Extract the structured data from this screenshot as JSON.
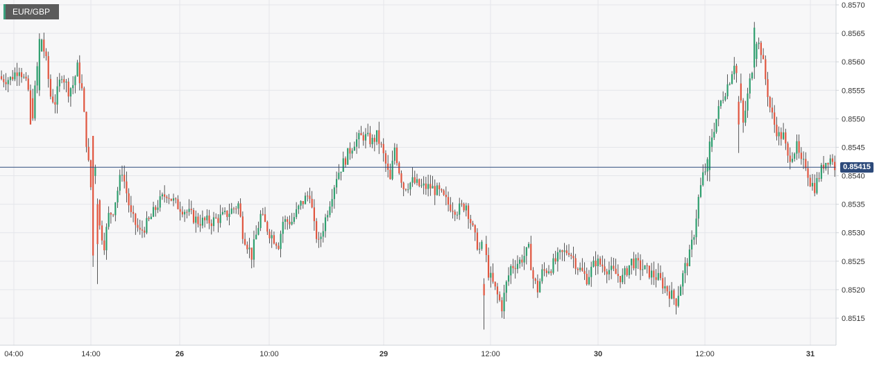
{
  "chart_data": {
    "type": "candlestick",
    "title": "EUR/GBP",
    "y_ticks": [
      "0.8570",
      "0.8565",
      "0.8560",
      "0.8555",
      "0.8550",
      "0.8545",
      "0.8540",
      "0.8535",
      "0.8530",
      "0.8525",
      "0.8520",
      "0.8515"
    ],
    "x_ticks": [
      {
        "label": "04:00",
        "bold": false
      },
      {
        "label": "14:00",
        "bold": false
      },
      {
        "label": "26",
        "bold": true
      },
      {
        "label": "10:00",
        "bold": false
      },
      {
        "label": "29",
        "bold": true
      },
      {
        "label": "12:00",
        "bold": false
      },
      {
        "label": "30",
        "bold": true
      },
      {
        "label": "12:00",
        "bold": false
      },
      {
        "label": "31",
        "bold": true
      }
    ],
    "ylim": [
      0.85125,
      0.8571
    ],
    "current_price": 0.85415,
    "current_price_label": "0.85415",
    "colors": {
      "up": "#2e9e6e",
      "down": "#e0553f",
      "price_line": "#2d4a7a"
    },
    "grid": true,
    "anchors": [
      [
        0,
        0.8557
      ],
      [
        4,
        0.8557
      ],
      [
        8,
        0.8559
      ],
      [
        12,
        0.8555
      ],
      [
        14,
        0.8551
      ],
      [
        16,
        0.8559
      ],
      [
        18,
        0.8564
      ],
      [
        20,
        0.856
      ],
      [
        22,
        0.8554
      ],
      [
        24,
        0.8553
      ],
      [
        27,
        0.8558
      ],
      [
        30,
        0.8555
      ],
      [
        32,
        0.8556
      ],
      [
        34,
        0.8559
      ],
      [
        36,
        0.8555
      ],
      [
        38,
        0.8546
      ],
      [
        40,
        0.8538
      ],
      [
        42,
        0.8542
      ],
      [
        44,
        0.8531
      ],
      [
        46,
        0.8528
      ],
      [
        48,
        0.8533
      ],
      [
        50,
        0.8534
      ],
      [
        54,
        0.8541
      ],
      [
        58,
        0.8533
      ],
      [
        62,
        0.853
      ],
      [
        66,
        0.8532
      ],
      [
        70,
        0.8535
      ],
      [
        74,
        0.8537
      ],
      [
        78,
        0.8535
      ],
      [
        82,
        0.8534
      ],
      [
        88,
        0.8532
      ],
      [
        94,
        0.8532
      ],
      [
        100,
        0.8533
      ],
      [
        106,
        0.8535
      ],
      [
        108,
        0.853
      ],
      [
        112,
        0.8526
      ],
      [
        116,
        0.8533
      ],
      [
        120,
        0.853
      ],
      [
        124,
        0.8528
      ],
      [
        126,
        0.8532
      ],
      [
        130,
        0.8532
      ],
      [
        134,
        0.8535
      ],
      [
        138,
        0.8537
      ],
      [
        140,
        0.8531
      ],
      [
        142,
        0.8528
      ],
      [
        146,
        0.8534
      ],
      [
        150,
        0.854
      ],
      [
        154,
        0.8543
      ],
      [
        158,
        0.8546
      ],
      [
        162,
        0.8547
      ],
      [
        166,
        0.8546
      ],
      [
        168,
        0.8547
      ],
      [
        170,
        0.8545
      ],
      [
        172,
        0.8542
      ],
      [
        174,
        0.8539
      ],
      [
        176,
        0.8545
      ],
      [
        178,
        0.8541
      ],
      [
        180,
        0.8538
      ],
      [
        184,
        0.8539
      ],
      [
        188,
        0.8538
      ],
      [
        192,
        0.8538
      ],
      [
        196,
        0.8537
      ],
      [
        200,
        0.8535
      ],
      [
        204,
        0.8534
      ],
      [
        208,
        0.8535
      ],
      [
        210,
        0.8532
      ],
      [
        212,
        0.8529
      ],
      [
        214,
        0.8527
      ],
      [
        216,
        0.8528
      ],
      [
        218,
        0.8523
      ],
      [
        220,
        0.8521
      ],
      [
        222,
        0.8519
      ],
      [
        224,
        0.8517
      ],
      [
        226,
        0.8521
      ],
      [
        228,
        0.8524
      ],
      [
        232,
        0.8525
      ],
      [
        236,
        0.8527
      ],
      [
        238,
        0.8522
      ],
      [
        240,
        0.852
      ],
      [
        242,
        0.8523
      ],
      [
        246,
        0.8524
      ],
      [
        250,
        0.8526
      ],
      [
        254,
        0.8527
      ],
      [
        258,
        0.8524
      ],
      [
        262,
        0.8522
      ],
      [
        266,
        0.8525
      ],
      [
        270,
        0.8524
      ],
      [
        274,
        0.8523
      ],
      [
        278,
        0.8522
      ],
      [
        282,
        0.8525
      ],
      [
        286,
        0.8524
      ],
      [
        290,
        0.8523
      ],
      [
        294,
        0.8522
      ],
      [
        298,
        0.852
      ],
      [
        300,
        0.8519
      ],
      [
        302,
        0.8518
      ],
      [
        304,
        0.8521
      ],
      [
        306,
        0.8524
      ],
      [
        308,
        0.8526
      ],
      [
        310,
        0.853
      ],
      [
        312,
        0.8536
      ],
      [
        314,
        0.854
      ],
      [
        316,
        0.8542
      ],
      [
        318,
        0.8547
      ],
      [
        320,
        0.855
      ],
      [
        322,
        0.8553
      ],
      [
        326,
        0.8557
      ],
      [
        328,
        0.856
      ],
      [
        330,
        0.8556
      ],
      [
        332,
        0.8549
      ],
      [
        334,
        0.8554
      ],
      [
        336,
        0.8559
      ],
      [
        338,
        0.8564
      ],
      [
        340,
        0.8562
      ],
      [
        342,
        0.8557
      ],
      [
        344,
        0.8552
      ],
      [
        346,
        0.8549
      ],
      [
        348,
        0.8547
      ],
      [
        350,
        0.8547
      ],
      [
        352,
        0.8543
      ],
      [
        354,
        0.8544
      ],
      [
        356,
        0.8545
      ],
      [
        358,
        0.8542
      ],
      [
        360,
        0.8542
      ],
      [
        362,
        0.8539
      ],
      [
        364,
        0.8538
      ],
      [
        366,
        0.854
      ],
      [
        368,
        0.8542
      ],
      [
        370,
        0.8543
      ],
      [
        372,
        0.8543
      ],
      [
        373,
        0.8541
      ]
    ],
    "spikes": [
      [
        13,
        0.8555,
        0.8549,
        0.8556,
        0.8549
      ],
      [
        17,
        0.8555,
        0.8564,
        0.8565,
        0.8554
      ],
      [
        41,
        0.8547,
        0.8526,
        0.8547,
        0.8524
      ],
      [
        43,
        0.8535,
        0.8528,
        0.8536,
        0.8521
      ],
      [
        216,
        0.8521,
        0.8519,
        0.8522,
        0.8513
      ],
      [
        317,
        0.8541,
        0.8546,
        0.8547,
        0.8539
      ],
      [
        330,
        0.8553,
        0.8549,
        0.8554,
        0.8544
      ],
      [
        337,
        0.8559,
        0.8566,
        0.8567,
        0.8557
      ]
    ]
  }
}
